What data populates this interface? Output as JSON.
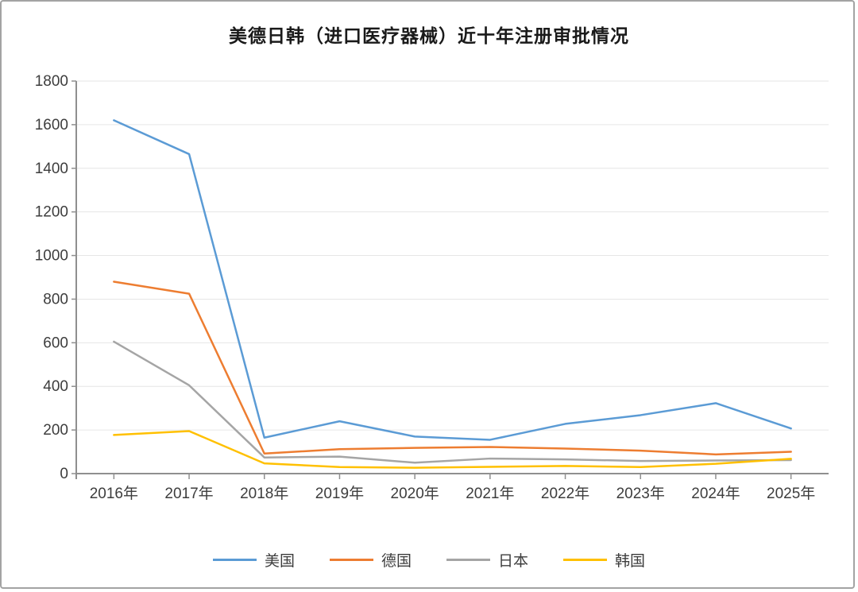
{
  "frame": {
    "border_color": "#a3a3a3",
    "background": "#ffffff"
  },
  "chart_data": {
    "type": "line",
    "title": "美德日韩（进口医疗器械）近十年注册审批情况",
    "categories": [
      "2016年",
      "2017年",
      "2018年",
      "2019年",
      "2020年",
      "2021年",
      "2022年",
      "2023年",
      "2024年",
      "2025年"
    ],
    "series": [
      {
        "name": "美国",
        "color": "#5B9BD5",
        "values": [
          1620,
          1465,
          165,
          240,
          170,
          155,
          228,
          268,
          323,
          207
        ]
      },
      {
        "name": "德国",
        "color": "#ED7D31",
        "values": [
          880,
          825,
          92,
          112,
          118,
          122,
          115,
          105,
          88,
          100
        ]
      },
      {
        "name": "日本",
        "color": "#A5A5A5",
        "values": [
          605,
          405,
          74,
          78,
          50,
          69,
          65,
          58,
          60,
          62
        ]
      },
      {
        "name": "韩国",
        "color": "#FFC000",
        "values": [
          177,
          195,
          47,
          30,
          27,
          31,
          35,
          30,
          45,
          68
        ]
      }
    ],
    "ylim": [
      0,
      1800
    ],
    "ytick_step": 200,
    "yticks": [
      "0",
      "200",
      "400",
      "600",
      "800",
      "1000",
      "1200",
      "1400",
      "1600",
      "1800"
    ],
    "grid": "horizontal-only",
    "legend_position": "bottom",
    "colors": {
      "gridline": "#e6e6e6",
      "axis": "#8f8f8f",
      "tick_text": "#3d3d3d",
      "title_text": "#1a1a1a"
    }
  }
}
